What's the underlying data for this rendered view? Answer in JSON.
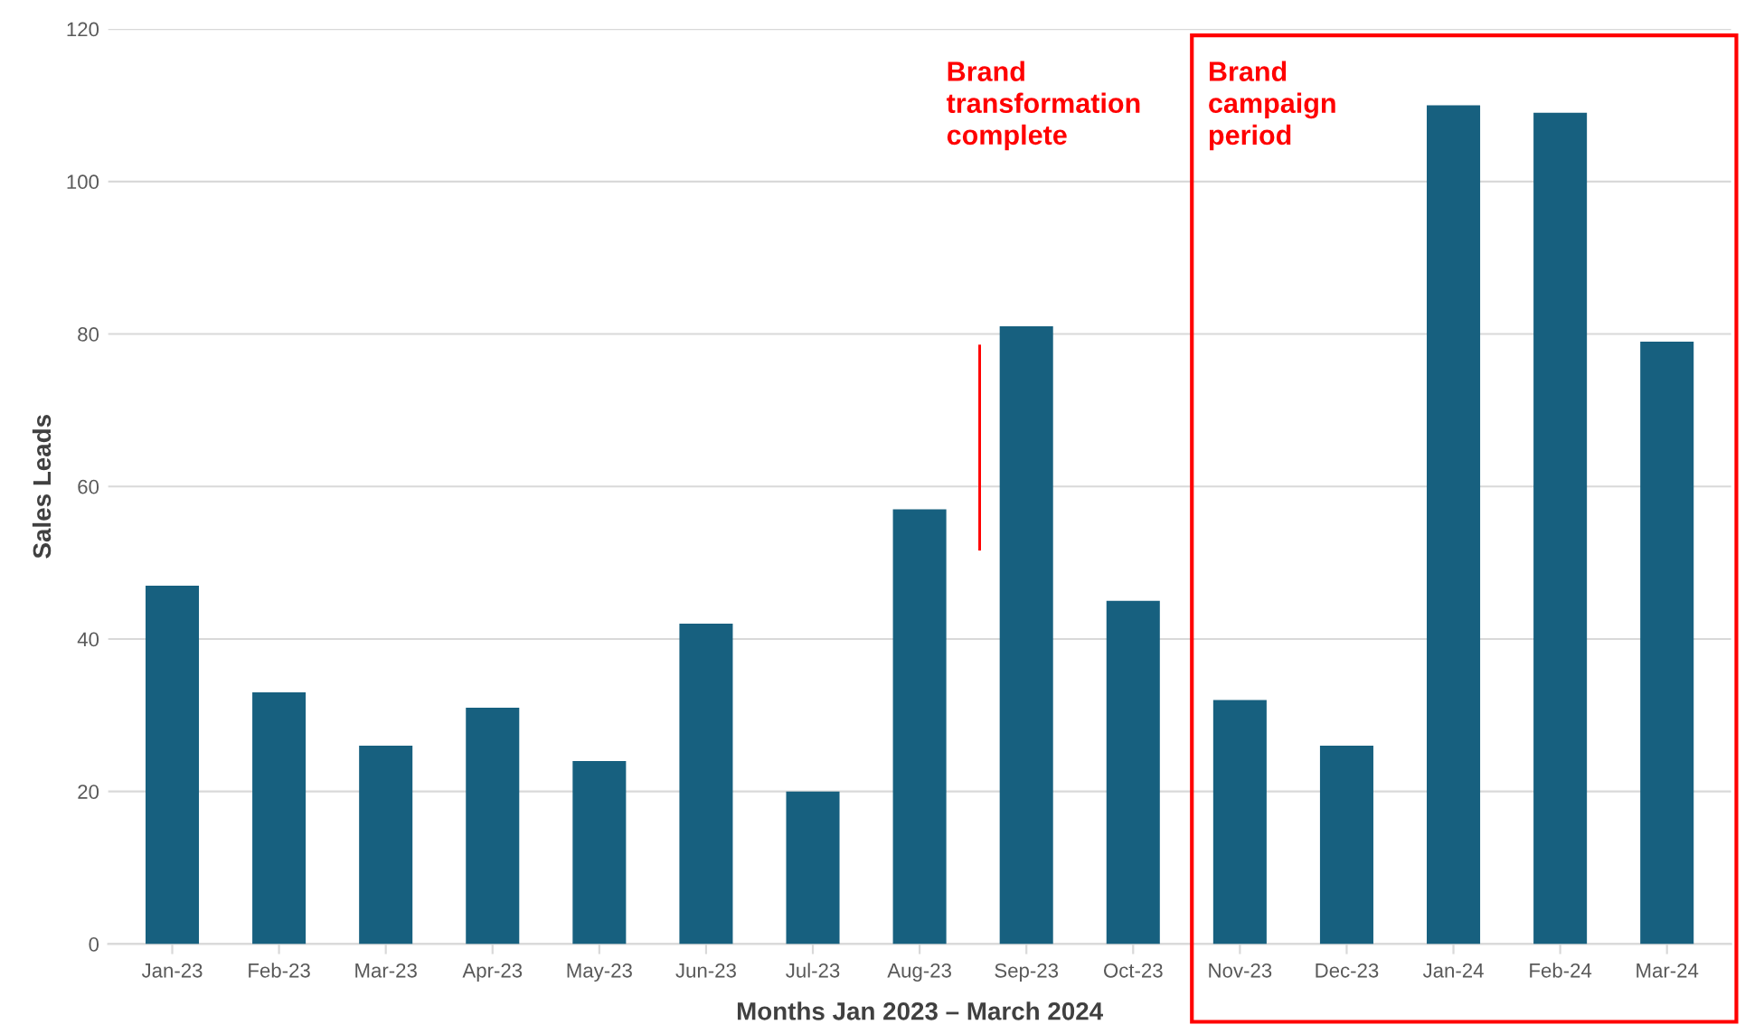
{
  "chart_data": {
    "type": "bar",
    "categories": [
      "Jan-23",
      "Feb-23",
      "Mar-23",
      "Apr-23",
      "May-23",
      "Jun-23",
      "Jul-23",
      "Aug-23",
      "Sep-23",
      "Oct-23",
      "Nov-23",
      "Dec-23",
      "Jan-24",
      "Feb-24",
      "Mar-24"
    ],
    "values": [
      47,
      33,
      26,
      31,
      24,
      42,
      20,
      57,
      81,
      45,
      32,
      26,
      110,
      109,
      79
    ],
    "color": "#17607f",
    "xlabel": "Months Jan 2023 – March 2024",
    "ylabel": "Sales Leads",
    "ylim": [
      0,
      120
    ],
    "yticks": [
      0,
      20,
      40,
      60,
      80,
      100,
      120
    ],
    "grid": "y",
    "annotations": [
      "Brand\ntransformation\ncomplete",
      "Brand\ncampaign\nperiod"
    ]
  }
}
